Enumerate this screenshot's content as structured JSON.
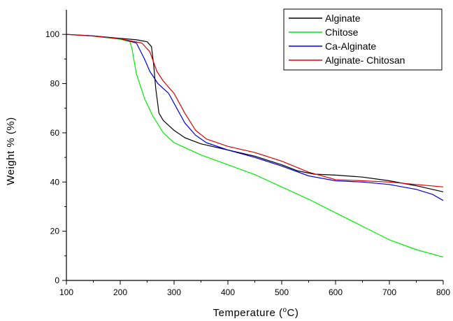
{
  "chart_data": {
    "type": "line",
    "xlabel": "Temperature (°C)",
    "xlabel_parts": {
      "before": "Temperature (",
      "superscript": "o",
      "after": "C)"
    },
    "ylabel": "Weight % (%)",
    "xlim": [
      100,
      800
    ],
    "ylim": [
      0,
      110
    ],
    "xticks": [
      100,
      200,
      300,
      400,
      500,
      600,
      700,
      800
    ],
    "yticks": [
      0,
      20,
      40,
      60,
      80,
      100
    ],
    "grid": false,
    "legend_position": "top-right",
    "series": [
      {
        "name": "Alginate",
        "color": "#000000",
        "points": [
          [
            100,
            100
          ],
          [
            150,
            99.4
          ],
          [
            200,
            98.4
          ],
          [
            230,
            97.8
          ],
          [
            250,
            97
          ],
          [
            258,
            95
          ],
          [
            262,
            88
          ],
          [
            266,
            78
          ],
          [
            272,
            68
          ],
          [
            280,
            65
          ],
          [
            300,
            61
          ],
          [
            320,
            58
          ],
          [
            350,
            55.5
          ],
          [
            400,
            53
          ],
          [
            450,
            50.5
          ],
          [
            500,
            47
          ],
          [
            530,
            44.5
          ],
          [
            560,
            43.2
          ],
          [
            600,
            42.8
          ],
          [
            650,
            42
          ],
          [
            700,
            40.5
          ],
          [
            750,
            38.5
          ],
          [
            800,
            36
          ]
        ]
      },
      {
        "name": "Chitose",
        "color": "#00ee00",
        "points": [
          [
            100,
            100
          ],
          [
            150,
            99.3
          ],
          [
            200,
            98
          ],
          [
            218,
            97
          ],
          [
            222,
            94
          ],
          [
            230,
            84
          ],
          [
            245,
            74
          ],
          [
            260,
            67
          ],
          [
            280,
            60
          ],
          [
            300,
            56
          ],
          [
            350,
            51
          ],
          [
            400,
            47
          ],
          [
            450,
            43
          ],
          [
            500,
            38
          ],
          [
            550,
            33
          ],
          [
            600,
            27.5
          ],
          [
            650,
            22
          ],
          [
            700,
            16.5
          ],
          [
            750,
            12.5
          ],
          [
            800,
            9.5
          ]
        ]
      },
      {
        "name": "Ca-Alginate",
        "color": "#0000dd",
        "points": [
          [
            100,
            100
          ],
          [
            150,
            99.4
          ],
          [
            200,
            98.3
          ],
          [
            230,
            96.5
          ],
          [
            245,
            90
          ],
          [
            255,
            85
          ],
          [
            270,
            80
          ],
          [
            290,
            76
          ],
          [
            305,
            70
          ],
          [
            320,
            64
          ],
          [
            340,
            59
          ],
          [
            360,
            56
          ],
          [
            400,
            53
          ],
          [
            450,
            50
          ],
          [
            500,
            46.5
          ],
          [
            550,
            42.5
          ],
          [
            600,
            40.5
          ],
          [
            650,
            40
          ],
          [
            700,
            39
          ],
          [
            750,
            37
          ],
          [
            780,
            35
          ],
          [
            800,
            32.5
          ]
        ]
      },
      {
        "name": "Alginate- Chitosan",
        "color": "#dd0000",
        "points": [
          [
            100,
            100
          ],
          [
            150,
            99.3
          ],
          [
            200,
            98.2
          ],
          [
            240,
            96.5
          ],
          [
            255,
            93
          ],
          [
            268,
            85
          ],
          [
            280,
            81
          ],
          [
            300,
            76
          ],
          [
            320,
            68
          ],
          [
            340,
            61
          ],
          [
            360,
            57.5
          ],
          [
            400,
            54.5
          ],
          [
            450,
            52
          ],
          [
            500,
            48.5
          ],
          [
            550,
            44
          ],
          [
            600,
            41
          ],
          [
            650,
            40.5
          ],
          [
            700,
            40
          ],
          [
            750,
            39
          ],
          [
            800,
            38
          ]
        ]
      }
    ]
  }
}
